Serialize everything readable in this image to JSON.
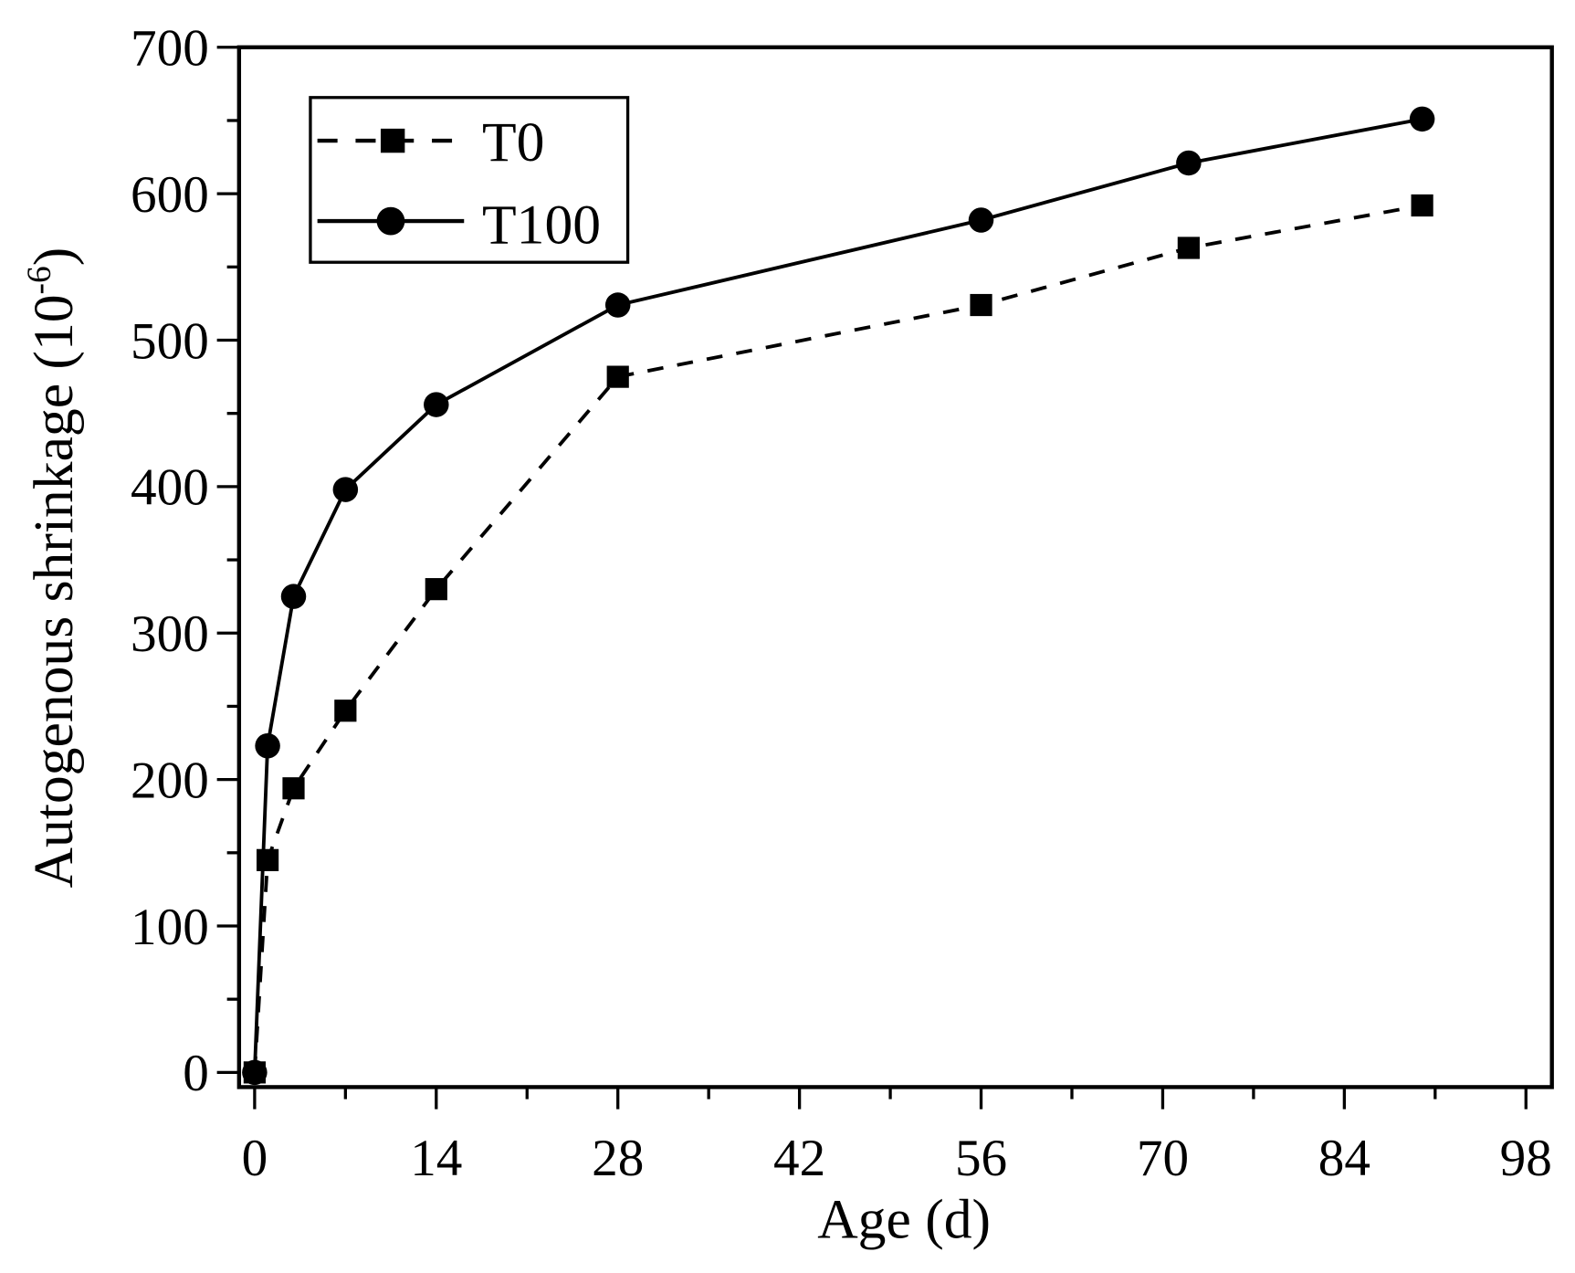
{
  "chart_data": {
    "type": "line",
    "title": "",
    "xlabel": "Age (d)",
    "ylabel": "Autogenous shrinkage (10",
    "ylabel_sup": "-6",
    "ylabel_end": ")",
    "xlim": [
      -1.2,
      100
    ],
    "ylim": [
      -10,
      700
    ],
    "xticks": [
      0,
      14,
      28,
      42,
      56,
      70,
      84,
      98
    ],
    "yticks": [
      0,
      100,
      200,
      300,
      400,
      500,
      600,
      700
    ],
    "grid": false,
    "legend_placement": "top-left",
    "series": [
      {
        "name": "T0",
        "marker": "square",
        "line": "dashed",
        "color": "#000000",
        "x": [
          0,
          1,
          3,
          7,
          14,
          28,
          56,
          72,
          90
        ],
        "y": [
          0,
          145,
          194,
          247,
          330,
          475,
          524,
          563,
          592
        ]
      },
      {
        "name": "T100",
        "marker": "circle",
        "line": "solid",
        "color": "#000000",
        "x": [
          0,
          1,
          3,
          7,
          14,
          28,
          56,
          72,
          90
        ],
        "y": [
          0,
          223,
          325,
          398,
          456,
          524,
          582,
          621,
          651
        ]
      }
    ]
  }
}
